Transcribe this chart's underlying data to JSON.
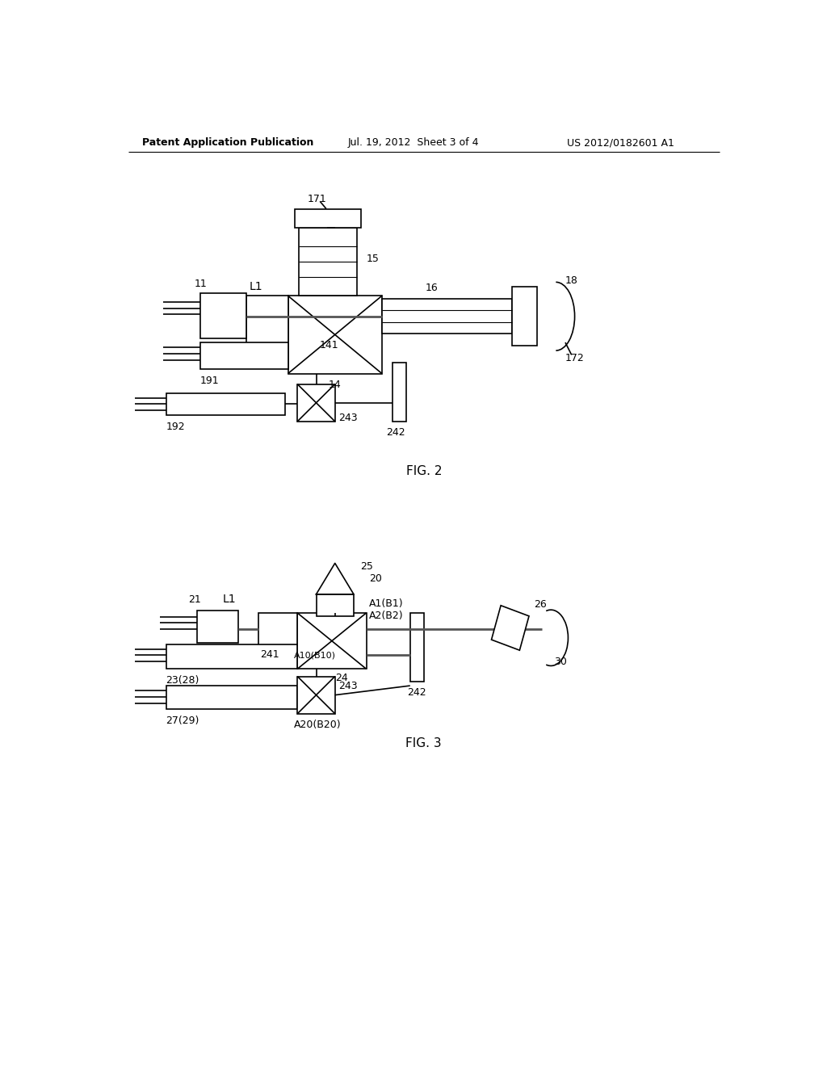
{
  "background_color": "#ffffff",
  "header_left": "Patent Application Publication",
  "header_center": "Jul. 19, 2012  Sheet 3 of 4",
  "header_right": "US 2012/0182601 A1",
  "fig2_caption": "FIG. 2",
  "fig3_caption": "FIG. 3",
  "lc": "#000000",
  "lw": 1.2
}
